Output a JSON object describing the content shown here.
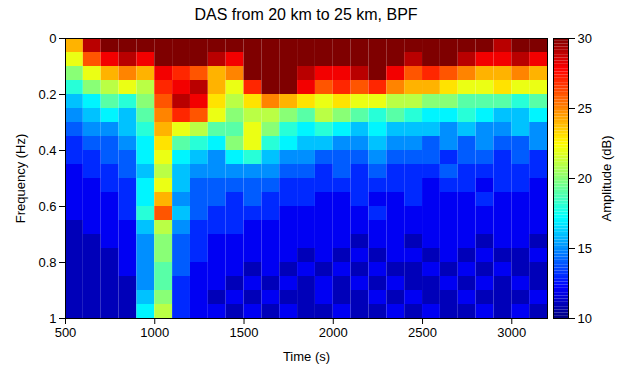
{
  "chart_data": {
    "type": "heatmap",
    "title": "DAS from 20 km to 25 km, BPF",
    "x_label": "Time (s)",
    "y_label": "Frequency (Hz)",
    "xlim": [
      500,
      3200
    ],
    "xticks": [
      500,
      1000,
      1500,
      2000,
      2500,
      3000
    ],
    "ylim": [
      0,
      1
    ],
    "yticks": [
      0,
      0.2,
      0.4,
      0.6,
      0.8,
      1
    ],
    "time_bins": [
      500,
      600,
      700,
      800,
      900,
      1000,
      1100,
      1200,
      1300,
      1400,
      1500,
      1600,
      1700,
      1800,
      1900,
      2000,
      2100,
      2200,
      2300,
      2400,
      2500,
      2600,
      2700,
      2800,
      2900,
      3000,
      3100,
      3200
    ],
    "frequency_bins": [
      0,
      0.05,
      0.1,
      0.15,
      0.2,
      0.25,
      0.3,
      0.35,
      0.4,
      0.45,
      0.5,
      0.55,
      0.6,
      0.65,
      0.7,
      0.75,
      0.8,
      0.85,
      0.9,
      0.95,
      1
    ],
    "cells": [
      [
        24,
        29,
        30,
        30,
        30,
        30,
        30,
        30,
        30,
        30,
        30,
        30,
        30,
        30,
        30,
        30,
        30,
        30,
        30,
        30,
        30,
        30,
        30,
        30,
        29,
        30,
        30
      ],
      [
        22,
        26,
        28,
        29,
        28,
        30,
        30,
        30,
        29,
        28,
        30,
        30,
        30,
        30,
        30,
        30,
        30,
        30,
        30,
        29,
        30,
        30,
        29,
        28,
        28,
        29,
        28
      ],
      [
        20,
        22,
        24,
        25,
        24,
        28,
        27,
        26,
        24,
        25,
        30,
        30,
        30,
        29,
        28,
        28,
        29,
        30,
        28,
        26,
        27,
        26,
        25,
        24,
        24,
        25,
        24
      ],
      [
        18,
        20,
        21,
        22,
        21,
        27,
        28,
        29,
        24,
        22,
        27,
        30,
        30,
        28,
        26,
        27,
        26,
        27,
        25,
        24,
        24,
        23,
        22,
        22,
        23,
        22,
        22
      ],
      [
        16,
        17,
        19,
        18,
        20,
        26,
        29,
        28,
        23,
        21,
        23,
        25,
        24,
        23,
        22,
        23,
        22,
        22,
        21,
        21,
        20,
        20,
        19,
        19,
        19,
        18,
        19
      ],
      [
        15,
        16,
        17,
        16,
        19,
        25,
        27,
        26,
        22,
        20,
        21,
        21,
        20,
        19,
        21,
        20,
        19,
        18,
        19,
        18,
        17,
        17,
        18,
        17,
        16,
        16,
        17
      ],
      [
        14,
        15,
        15,
        16,
        18,
        24,
        22,
        21,
        19,
        19,
        22,
        20,
        18,
        17,
        18,
        17,
        16,
        17,
        16,
        16,
        16,
        15,
        16,
        15,
        15,
        16,
        15
      ],
      [
        13,
        14,
        14,
        15,
        17,
        23,
        19,
        18,
        17,
        20,
        22,
        18,
        17,
        16,
        16,
        15,
        15,
        16,
        15,
        15,
        14,
        15,
        14,
        15,
        14,
        14,
        15
      ],
      [
        13,
        13,
        14,
        14,
        17,
        22,
        17,
        16,
        15,
        17,
        18,
        16,
        15,
        15,
        14,
        14,
        14,
        15,
        14,
        14,
        14,
        13,
        14,
        14,
        13,
        14,
        13
      ],
      [
        12,
        13,
        13,
        14,
        16,
        21,
        16,
        15,
        15,
        15,
        15,
        15,
        14,
        14,
        13,
        14,
        13,
        14,
        13,
        13,
        13,
        14,
        13,
        13,
        13,
        13,
        13
      ],
      [
        12,
        12,
        13,
        13,
        17,
        22,
        16,
        14,
        14,
        14,
        14,
        14,
        13,
        13,
        13,
        13,
        13,
        13,
        13,
        13,
        12,
        13,
        13,
        12,
        13,
        13,
        12
      ],
      [
        12,
        12,
        12,
        13,
        17,
        24,
        15,
        14,
        14,
        13,
        14,
        13,
        13,
        13,
        12,
        12,
        13,
        12,
        12,
        13,
        12,
        12,
        12,
        13,
        12,
        12,
        12
      ],
      [
        12,
        12,
        12,
        13,
        18,
        26,
        16,
        14,
        13,
        13,
        13,
        13,
        12,
        12,
        12,
        12,
        12,
        13,
        12,
        12,
        12,
        12,
        12,
        12,
        12,
        12,
        12
      ],
      [
        11,
        12,
        12,
        12,
        16,
        21,
        15,
        13,
        13,
        13,
        12,
        12,
        12,
        12,
        12,
        12,
        12,
        12,
        12,
        12,
        12,
        12,
        12,
        12,
        12,
        12,
        12
      ],
      [
        11,
        11,
        12,
        12,
        15,
        20,
        14,
        13,
        12,
        12,
        12,
        12,
        12,
        12,
        12,
        12,
        11,
        12,
        12,
        11,
        12,
        12,
        12,
        11,
        12,
        12,
        11
      ],
      [
        11,
        11,
        11,
        12,
        15,
        20,
        14,
        13,
        12,
        12,
        12,
        12,
        12,
        11,
        12,
        11,
        12,
        11,
        12,
        12,
        11,
        12,
        11,
        12,
        11,
        11,
        12
      ],
      [
        11,
        11,
        11,
        12,
        15,
        19,
        14,
        12,
        12,
        12,
        11,
        12,
        11,
        12,
        11,
        12,
        11,
        12,
        11,
        11,
        12,
        11,
        12,
        11,
        12,
        11,
        11
      ],
      [
        11,
        11,
        11,
        11,
        15,
        19,
        13,
        12,
        12,
        11,
        12,
        11,
        12,
        11,
        12,
        11,
        12,
        11,
        12,
        11,
        11,
        12,
        11,
        12,
        11,
        12,
        11
      ],
      [
        11,
        11,
        11,
        11,
        16,
        20,
        13,
        12,
        11,
        12,
        11,
        12,
        11,
        11,
        12,
        11,
        11,
        12,
        11,
        12,
        11,
        11,
        12,
        11,
        11,
        11,
        12
      ],
      [
        11,
        11,
        11,
        11,
        17,
        21,
        13,
        12,
        12,
        11,
        12,
        11,
        12,
        11,
        11,
        12,
        11,
        11,
        12,
        11,
        12,
        11,
        11,
        12,
        11,
        12,
        11
      ]
    ],
    "colorbar": {
      "label": "Amplitude (dB)",
      "range": [
        10,
        30
      ],
      "ticks": [
        10,
        15,
        20,
        25,
        30
      ]
    }
  }
}
